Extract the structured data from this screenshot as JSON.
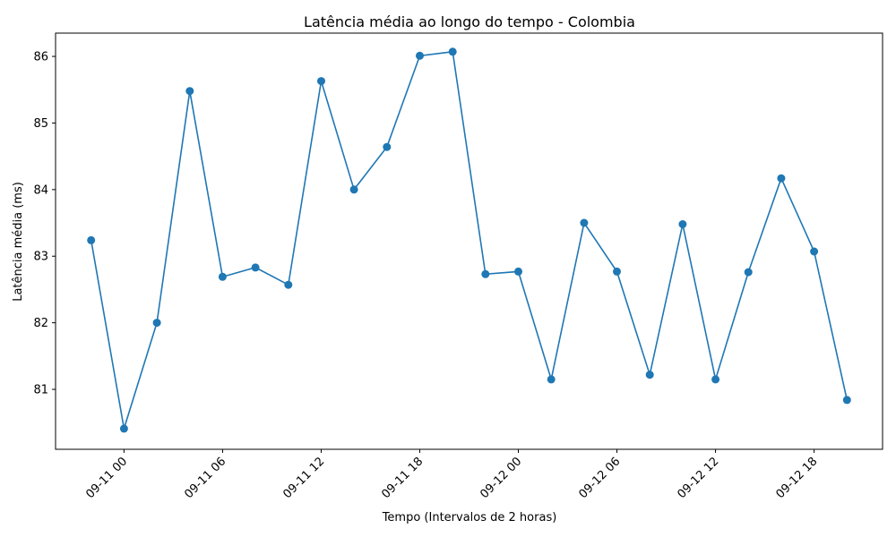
{
  "chart_data": {
    "type": "line",
    "title": "Latência média ao longo do tempo - Colombia",
    "xlabel": "Tempo (Intervalos de 2 horas)",
    "ylabel": "Latência média (ms)",
    "x_start": "2023-09-10T22:00",
    "x_ticks": [
      {
        "t": "2023-09-11T00:00",
        "label": "09-11 00"
      },
      {
        "t": "2023-09-11T06:00",
        "label": "09-11 06"
      },
      {
        "t": "2023-09-11T12:00",
        "label": "09-11 12"
      },
      {
        "t": "2023-09-11T18:00",
        "label": "09-11 18"
      },
      {
        "t": "2023-09-12T00:00",
        "label": "09-12 00"
      },
      {
        "t": "2023-09-12T06:00",
        "label": "09-12 06"
      },
      {
        "t": "2023-09-12T12:00",
        "label": "09-12 12"
      },
      {
        "t": "2023-09-12T18:00",
        "label": "09-12 18"
      }
    ],
    "y_ticks": [
      81,
      82,
      83,
      84,
      85,
      86
    ],
    "ylim": [
      80.1,
      86.35
    ],
    "xlim": [
      "2023-09-10T19:50",
      "2023-09-12T22:10"
    ],
    "grid": false,
    "color": "#1f77b4",
    "series": [
      {
        "x": [
          "2023-09-10T22:00",
          "2023-09-11T00:00",
          "2023-09-11T02:00",
          "2023-09-11T04:00",
          "2023-09-11T06:00",
          "2023-09-11T08:00",
          "2023-09-11T10:00",
          "2023-09-11T12:00",
          "2023-09-11T14:00",
          "2023-09-11T16:00",
          "2023-09-11T18:00",
          "2023-09-11T20:00",
          "2023-09-11T22:00",
          "2023-09-12T00:00",
          "2023-09-12T02:00",
          "2023-09-12T04:00",
          "2023-09-12T06:00",
          "2023-09-12T08:00",
          "2023-09-12T10:00",
          "2023-09-12T12:00",
          "2023-09-12T14:00",
          "2023-09-12T16:00",
          "2023-09-12T18:00",
          "2023-09-12T20:00"
        ],
        "values": [
          83.24,
          80.41,
          82.0,
          85.48,
          82.69,
          82.83,
          82.57,
          85.63,
          84.0,
          84.64,
          86.01,
          86.07,
          82.73,
          82.77,
          81.15,
          83.5,
          82.77,
          81.22,
          83.48,
          81.15,
          82.76,
          84.17,
          83.07,
          80.84
        ]
      }
    ]
  }
}
